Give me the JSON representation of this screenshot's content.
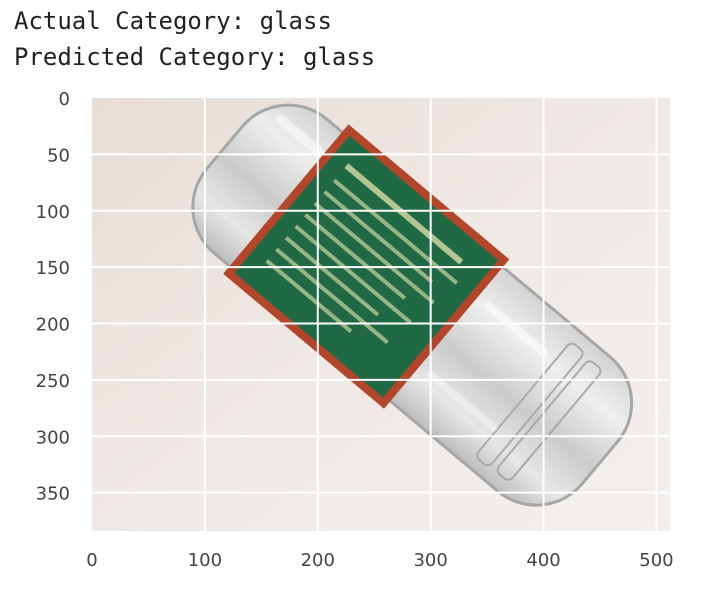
{
  "output": {
    "actual_label": "Actual Category:",
    "actual_value": "glass",
    "predicted_label": "Predicted Category:",
    "predicted_value": "glass"
  },
  "plot": {
    "x_ticks": [
      "0",
      "100",
      "200",
      "300",
      "400",
      "500"
    ],
    "y_ticks": [
      "0",
      "50",
      "100",
      "150",
      "200",
      "250",
      "300",
      "350"
    ],
    "xlim": [
      0,
      512
    ],
    "ylim": [
      384,
      0
    ],
    "grid": true,
    "image_subject": "glass jar with green label"
  }
}
